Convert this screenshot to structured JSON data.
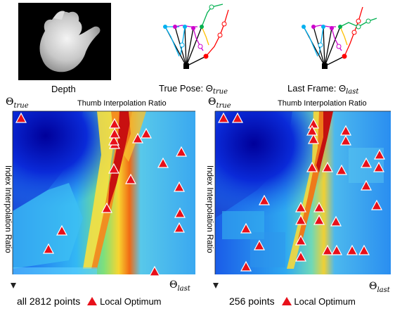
{
  "top_row": {
    "depth_label": "Depth",
    "true_pose_label": "True Pose: Θ",
    "true_pose_sub": "true",
    "last_frame_label": "Last Frame: Θ",
    "last_frame_sub": "last"
  },
  "panels": [
    {
      "theta_true": "Θ",
      "theta_true_sub": "true",
      "theta_last": "Θ",
      "theta_last_sub": "last",
      "x_axis_label": "Thumb Interpolation Ratio",
      "y_axis_label": "Index Interpolation Ratio",
      "caption_count": "all 2812 points",
      "caption_legend": "Local Optimum",
      "local_optima_count": 18
    },
    {
      "theta_true": "Θ",
      "theta_true_sub": "true",
      "theta_last": "Θ",
      "theta_last_sub": "last",
      "x_axis_label": "Thumb Interpolation Ratio",
      "y_axis_label": "Index Interpolation Ratio",
      "caption_count": "256 points",
      "caption_legend": "Local Optimum",
      "local_optima_count": 30
    }
  ],
  "colors": {
    "marker_fill": "#e8101a",
    "marker_stroke": "#ffffff",
    "pose_colors": [
      "#00b0f0",
      "#00b050",
      "#ff0000",
      "#ffc000",
      "#cc00cc",
      "#000000"
    ]
  }
}
